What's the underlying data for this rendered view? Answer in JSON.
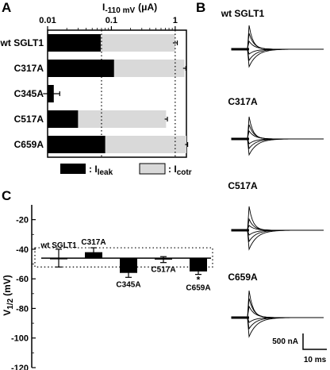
{
  "panels": {
    "a": "A",
    "b": "B",
    "c": "C"
  },
  "chart_data": [
    {
      "type": "bar",
      "panel": "A",
      "orientation": "horizontal",
      "scale": "log",
      "xlabel": "I",
      "xlabel_sub": "-110 mV",
      "xlabel_unit": "(μA)",
      "xlim": [
        0.01,
        1.5
      ],
      "xticks": [
        {
          "value": 0.01,
          "label": "0.01"
        },
        {
          "value": 0.1,
          "label": "0.1"
        },
        {
          "value": 1,
          "label": "1"
        }
      ],
      "categories": [
        "wt SGLT1",
        "C317A",
        "C345A",
        "C517A",
        "C659A"
      ],
      "series": [
        {
          "name": "I",
          "name_sub": "leak",
          "color": "#000000",
          "values": [
            0.068,
            0.11,
            0.0125,
            0.03,
            0.08
          ]
        },
        {
          "name": "I",
          "name_sub": "cotr",
          "color": "#d9d9d9",
          "values": [
            1.0,
            1.4,
            0.012,
            0.72,
            1.5
          ],
          "errors": [
            0.08,
            0.07,
            0.0035,
            0.035,
            0.07
          ]
        }
      ],
      "grid_lines_dotted": [
        0.07,
        1.0
      ],
      "legend": "bottom"
    },
    {
      "type": "bar",
      "panel": "C",
      "ylabel": "V",
      "ylabel_sub": "1/2",
      "ylabel_unit": "(mV)",
      "ylim": [
        -120,
        -10
      ],
      "yticks": [
        -20,
        -40,
        -60,
        -80,
        -100,
        -120
      ],
      "baseline": -46,
      "categories": [
        "wt SGLT1",
        "C317A",
        "C345A",
        "C517A",
        "C659A"
      ],
      "values": [
        -46,
        -42,
        -56,
        -47,
        -55
      ],
      "errors": [
        6,
        3,
        3,
        2,
        2
      ],
      "annotations": [
        {
          "category": "C659A",
          "text": "*"
        }
      ],
      "band": [
        -39,
        -52
      ]
    }
  ],
  "traces": {
    "labels": [
      "wt SGLT1",
      "C317A",
      "C517A",
      "C659A"
    ],
    "scale_current": "500 nA",
    "scale_time": "10 ms"
  }
}
